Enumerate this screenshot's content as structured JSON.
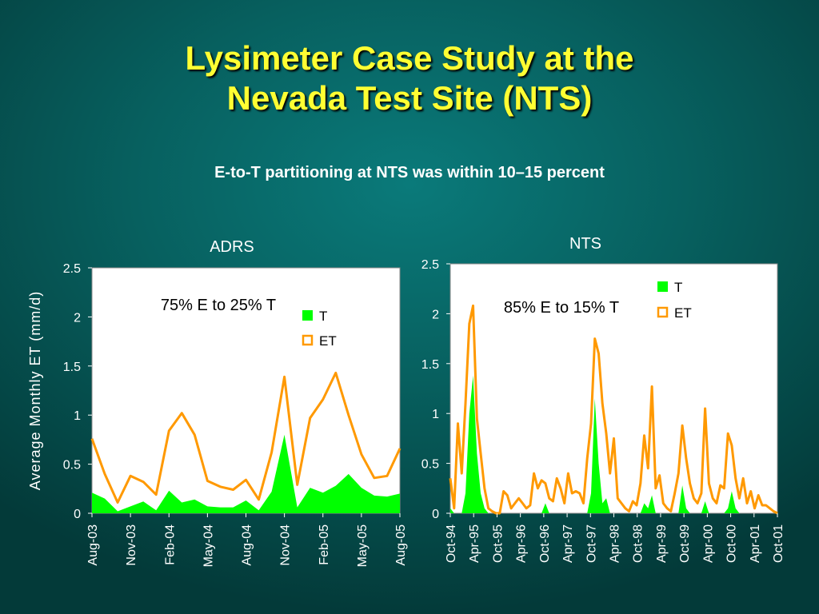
{
  "slide": {
    "title_line1": "Lysimeter Case Study at the",
    "title_line2": "Nevada Test Site (NTS)",
    "subtitle": "E-to-T partitioning at NTS was within 10–15 percent"
  },
  "colors": {
    "et": "#ff9900",
    "t": "#00ff00",
    "plot_bg": "#ffffff",
    "text": "#ffffff"
  },
  "chart_data": [
    {
      "type": "area",
      "title": "ADRS",
      "ylabel": "Average Monthly ET (mm/d)",
      "annotation": "75% E to 25% T",
      "legend": "top-right",
      "ylim": [
        0,
        2.5
      ],
      "yticks": [
        "0",
        "0.5",
        "1",
        "1.5",
        "2",
        "2.5"
      ],
      "x_start": "Aug-03",
      "x_end": "Aug-05",
      "x_tick_labels": [
        "Aug-03",
        "Nov-03",
        "Feb-04",
        "May-04",
        "Aug-04",
        "Nov-04",
        "Feb-05",
        "May-05",
        "Aug-05"
      ],
      "series": [
        {
          "name": "ET",
          "style": "line",
          "values": [
            0.76,
            0.4,
            0.11,
            0.38,
            0.32,
            0.19,
            0.84,
            1.02,
            0.8,
            0.33,
            0.27,
            0.24,
            0.34,
            0.14,
            0.62,
            1.39,
            0.29,
            0.97,
            1.16,
            1.43,
            1.0,
            0.6,
            0.36,
            0.38,
            0.66
          ]
        },
        {
          "name": "T",
          "style": "area",
          "values": [
            0.21,
            0.15,
            0.02,
            0.07,
            0.12,
            0.03,
            0.23,
            0.11,
            0.14,
            0.07,
            0.06,
            0.06,
            0.13,
            0.03,
            0.22,
            0.8,
            0.06,
            0.26,
            0.21,
            0.28,
            0.4,
            0.26,
            0.18,
            0.17,
            0.2
          ]
        }
      ]
    },
    {
      "type": "area",
      "title": "NTS",
      "annotation": "85% E to 15% T",
      "legend": "top-right",
      "ylim": [
        0,
        2.5
      ],
      "yticks": [
        "0",
        "0.5",
        "1",
        "1.5",
        "2",
        "2.5"
      ],
      "x_start": "Oct-94",
      "x_end": "Dec-01",
      "x_tick_labels": [
        "Oct-94",
        "Apr-95",
        "Oct-95",
        "Apr-96",
        "Oct-96",
        "Apr-97",
        "Oct-97",
        "Apr-98",
        "Oct-98",
        "Apr-99",
        "Oct-99",
        "Apr-00",
        "Oct-00",
        "Apr-01",
        "Oct-01"
      ],
      "series": [
        {
          "name": "ET",
          "style": "line",
          "values": [
            0.35,
            0.05,
            0.9,
            0.4,
            1.1,
            1.9,
            2.08,
            0.95,
            0.6,
            0.25,
            0.05,
            0.02,
            0,
            0,
            0.22,
            0.18,
            0.05,
            0.1,
            0.15,
            0.1,
            0.05,
            0.08,
            0.4,
            0.25,
            0.33,
            0.3,
            0.15,
            0.12,
            0.35,
            0.25,
            0.1,
            0.4,
            0.2,
            0.22,
            0.2,
            0.1,
            0.55,
            0.9,
            1.75,
            1.6,
            1.1,
            0.8,
            0.4,
            0.75,
            0.15,
            0.1,
            0.05,
            0.02,
            0.12,
            0.08,
            0.3,
            0.78,
            0.45,
            1.27,
            0.25,
            0.38,
            0.1,
            0.05,
            0.02,
            0.2,
            0.4,
            0.88,
            0.55,
            0.3,
            0.15,
            0.1,
            0.2,
            1.05,
            0.3,
            0.15,
            0.1,
            0.28,
            0.25,
            0.8,
            0.68,
            0.35,
            0.15,
            0.35,
            0.1,
            0.22,
            0.05,
            0.18,
            0.08,
            0.08,
            0.05,
            0.02,
            0
          ],
          "x_start_index": 0
        },
        {
          "name": "T",
          "style": "area",
          "values": [
            0.05,
            0,
            0,
            0,
            0.2,
            1.0,
            1.38,
            0.6,
            0.2,
            0.05,
            0,
            0,
            0,
            0,
            0,
            0,
            0,
            0,
            0,
            0,
            0,
            0,
            0,
            0,
            0,
            0.1,
            0,
            0,
            0,
            0,
            0,
            0,
            0,
            0,
            0,
            0,
            0,
            0.2,
            1.15,
            0.5,
            0.1,
            0.15,
            0,
            0,
            0,
            0,
            0,
            0,
            0,
            0,
            0,
            0.1,
            0.05,
            0.18,
            0,
            0,
            0,
            0,
            0,
            0,
            0,
            0.28,
            0.05,
            0,
            0,
            0,
            0,
            0.12,
            0,
            0,
            0,
            0,
            0,
            0.05,
            0.22,
            0.05,
            0,
            0,
            0,
            0,
            0,
            0,
            0,
            0,
            0,
            0,
            0
          ]
        }
      ]
    }
  ]
}
